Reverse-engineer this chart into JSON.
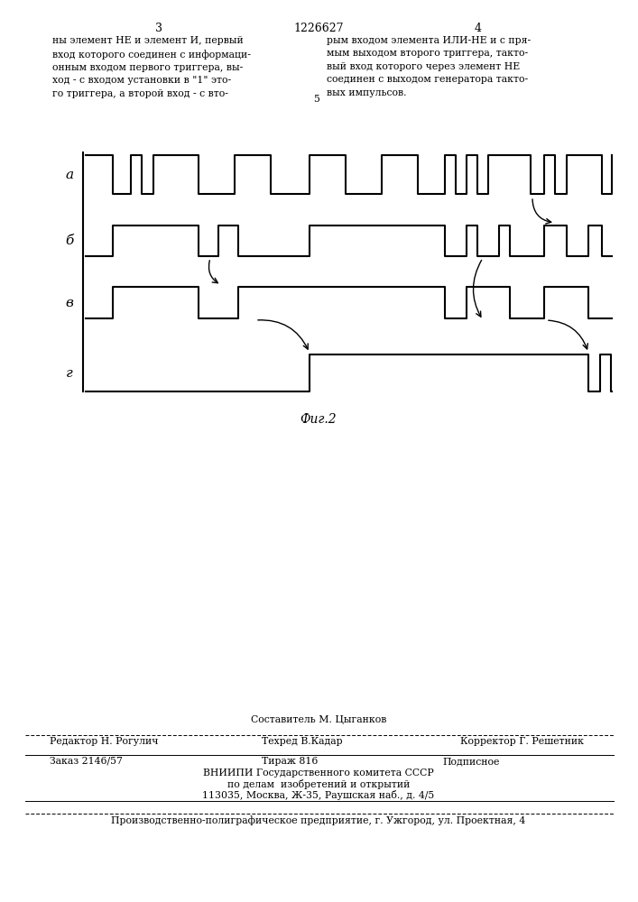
{
  "page_left": "3",
  "page_center": "1226627",
  "page_right": "4",
  "top_left": "ны элемент НЕ и элемент И, первый\nвход которого соединен с информаци-\nонным входом первого триггера, вы-\nход - с входом установки в \"1\" это-\nго триггера, а второй вход - с вто-",
  "top_right": "рым входом элемента ИЛИ-НЕ и с пря-\nмым выходом второго триггера, такто-\nвый вход которого через элемент НЕ\nсоединен с выходом генератора такто-\nвых импульсов.",
  "line5_num": "5",
  "fig_label": "Фиг.2",
  "signal_labels": [
    "а",
    "б",
    "в",
    "г"
  ],
  "bottom1": "Составитель М. Цыганков",
  "bottom2l": "Редактор Н. Рогулич",
  "bottom2c": "Техред В.Кадар",
  "bottom2r": "Корректор Г. Решетник",
  "bottom3l": "Заказ 2146/57",
  "bottom3c": "Тираж 816",
  "bottom3r": "Подписное",
  "bottom4": "ВНИИПИ Государственного комитета СССР",
  "bottom5": "по делам  изобретений и открытий",
  "bottom6": "113035, Москва, Ж-35, Раушская наб., д. 4/5",
  "bottom7": "Производственно-полиграфическое предприятие, г. Ужгород, ул. Проектная, 4",
  "bg_color": "#ffffff",
  "lc": "#000000"
}
